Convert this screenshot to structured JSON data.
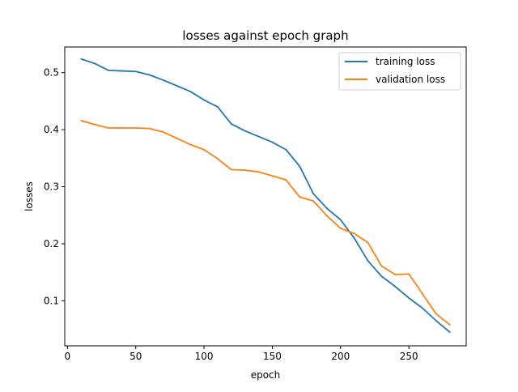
{
  "chart_data": {
    "type": "line",
    "title": "losses against epoch graph",
    "xlabel": "epoch",
    "ylabel": "losses",
    "xlim": [
      -2,
      292
    ],
    "ylim": [
      0.021,
      0.545
    ],
    "xticks": [
      0,
      50,
      100,
      150,
      200,
      250
    ],
    "xtick_labels": [
      "0",
      "50",
      "100",
      "150",
      "200",
      "250"
    ],
    "yticks": [
      0.1,
      0.2,
      0.3,
      0.4,
      0.5
    ],
    "ytick_labels": [
      "0.1",
      "0.2",
      "0.3",
      "0.4",
      "0.5"
    ],
    "grid": false,
    "legend_position": "top-right",
    "x": [
      10,
      20,
      30,
      40,
      50,
      60,
      70,
      80,
      90,
      100,
      110,
      120,
      130,
      140,
      150,
      160,
      170,
      180,
      190,
      200,
      210,
      220,
      230,
      240,
      250,
      260,
      270,
      280
    ],
    "series": [
      {
        "name": "training loss",
        "color": "#1f77b4",
        "values": [
          0.524,
          0.516,
          0.504,
          0.503,
          0.502,
          0.496,
          0.487,
          0.477,
          0.467,
          0.452,
          0.44,
          0.41,
          0.398,
          0.388,
          0.378,
          0.365,
          0.336,
          0.288,
          0.262,
          0.242,
          0.21,
          0.17,
          0.143,
          0.125,
          0.105,
          0.087,
          0.065,
          0.045
        ]
      },
      {
        "name": "validation loss",
        "color": "#ff7f0e",
        "values": [
          0.416,
          0.409,
          0.403,
          0.403,
          0.403,
          0.402,
          0.396,
          0.385,
          0.374,
          0.365,
          0.349,
          0.33,
          0.329,
          0.326,
          0.319,
          0.312,
          0.282,
          0.275,
          0.249,
          0.227,
          0.218,
          0.202,
          0.161,
          0.146,
          0.147,
          0.112,
          0.077,
          0.058
        ]
      }
    ]
  }
}
